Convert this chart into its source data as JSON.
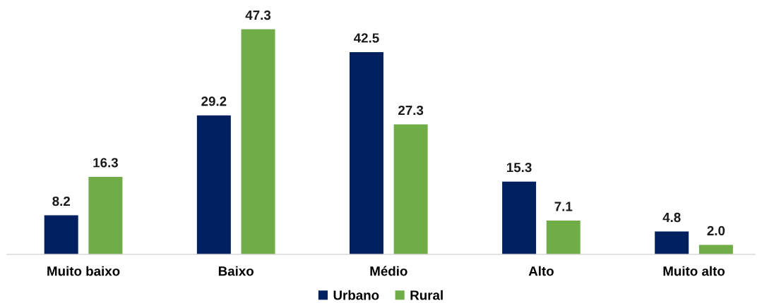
{
  "chart_data": {
    "type": "bar",
    "categories": [
      "Muito baixo",
      "Baixo",
      "Médio",
      "Alto",
      "Muito alto"
    ],
    "series": [
      {
        "name": "Urbano",
        "color": "#002060",
        "values": [
          8.2,
          29.2,
          42.5,
          15.3,
          4.8
        ],
        "value_labels": [
          "8.2",
          "29.2",
          "42.5",
          "15.3",
          "4.8"
        ]
      },
      {
        "name": "Rural",
        "color": "#70ad47",
        "values": [
          16.3,
          47.3,
          27.3,
          7.1,
          2.0
        ],
        "value_labels": [
          "16.3",
          "47.3",
          "27.3",
          "7.1",
          "2.0"
        ]
      }
    ],
    "legend": "bottom"
  }
}
